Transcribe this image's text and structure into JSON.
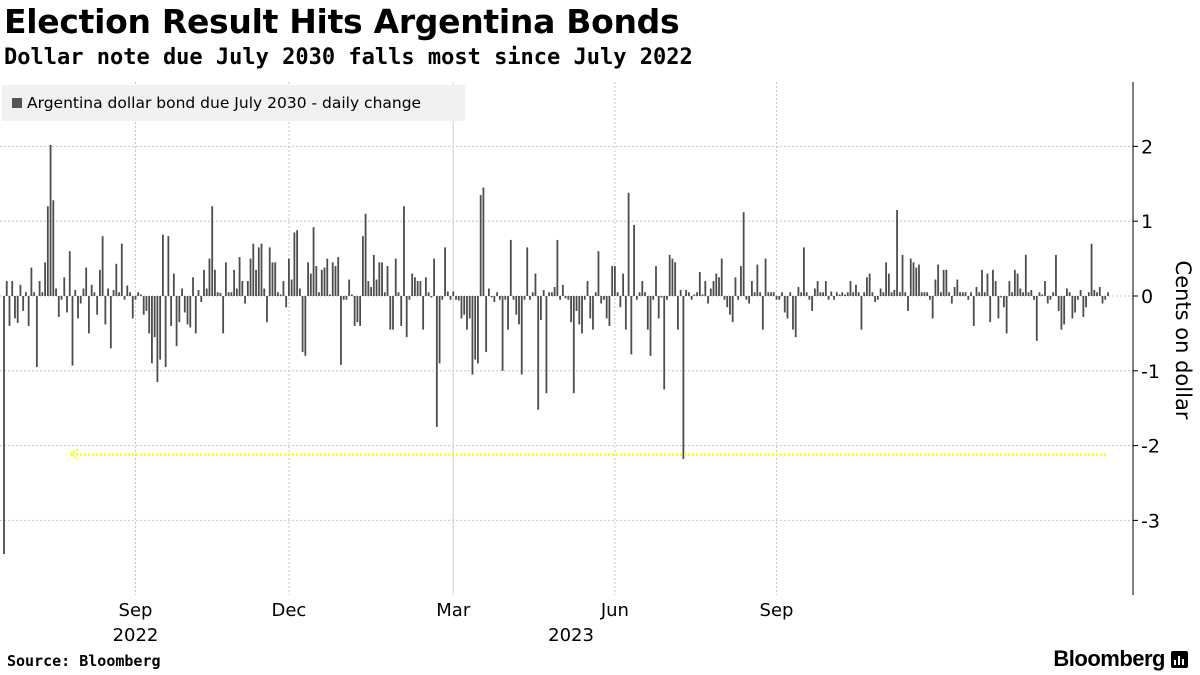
{
  "header": {
    "title": "Election Result Hits Argentina Bonds",
    "subtitle": "Dollar note due July 2030 falls most since July 2022"
  },
  "legend": {
    "label": "Argentina dollar bond due July 2030 - daily change"
  },
  "footer": {
    "source": "Source: Bloomberg",
    "brand": "Bloomberg"
  },
  "colors": {
    "bar": "#4d4d4d",
    "highlight": "#ffff00",
    "grid": "#c8c8c8",
    "legend_bg": "#f1f1f1"
  },
  "chart_data": {
    "type": "bar",
    "title": "Election Result Hits Argentina Bonds",
    "subtitle": "Dollar note due July 2030 falls most since July 2022",
    "ylabel": "Cents on dollar",
    "xlabel": "",
    "ylim": [
      -4,
      2.8
    ],
    "yticks": [
      2,
      1,
      0,
      -1,
      -2,
      -3
    ],
    "xticks": [
      {
        "label": "Sep",
        "index": 48
      },
      {
        "label": "Dec",
        "index": 104
      },
      {
        "label": "Mar",
        "index": 164
      },
      {
        "label": "Jun",
        "index": 223
      },
      {
        "label": "Sep",
        "index": 282
      }
    ],
    "year_labels": [
      {
        "label": "2022",
        "index": 48
      },
      {
        "label": "2023",
        "index": 207
      }
    ],
    "annotation": {
      "type": "reference-line",
      "style": "dotted-arrow",
      "value": -2.12
    },
    "series": [
      {
        "name": "Argentina dollar bond due July 2030 - daily change",
        "values": [
          -3.45,
          0.2,
          -0.4,
          0.2,
          -0.3,
          -0.36,
          0.15,
          -0.2,
          0.05,
          -0.4,
          0.38,
          0.05,
          -0.95,
          0.2,
          0.05,
          0.45,
          1.2,
          2.02,
          1.28,
          0.1,
          -0.28,
          -0.05,
          0.25,
          -0.22,
          0.6,
          -0.93,
          0.08,
          -0.3,
          -0.1,
          0.1,
          0.38,
          -0.5,
          0.15,
          0.05,
          -0.25,
          0.35,
          0.8,
          -0.38,
          0.1,
          -0.7,
          0.08,
          0.43,
          0.05,
          0.7,
          -0.05,
          0.14,
          0.05,
          -0.3,
          -0.05,
          0.05,
          0.02,
          -0.25,
          -0.2,
          -0.5,
          -0.9,
          -0.55,
          -1.15,
          -0.85,
          0.82,
          -0.95,
          0.8,
          -0.4,
          0.3,
          -0.67,
          -0.35,
          0.1,
          -0.22,
          -0.38,
          -0.42,
          0.25,
          -0.5,
          0.08,
          -0.08,
          0.35,
          0.1,
          0.5,
          1.2,
          0.35,
          0.05,
          0.04,
          -0.5,
          0.45,
          0.05,
          0.05,
          0.35,
          0.1,
          0.52,
          0.2,
          -0.1,
          0.2,
          0.5,
          0.7,
          0.35,
          0.65,
          0.7,
          0.1,
          -0.35,
          0.65,
          0.45,
          0.45,
          0.05,
          0.02,
          0.2,
          -0.15,
          0.5,
          0.22,
          0.85,
          0.88,
          0.1,
          -0.75,
          -0.8,
          0.45,
          0.3,
          0.92,
          0.4,
          0.05,
          0.35,
          0.38,
          0.5,
          0.02,
          0.45,
          0.4,
          0.52,
          -0.92,
          -0.05,
          -0.05,
          0.22,
          0.02,
          -0.4,
          -0.35,
          -0.4,
          0.8,
          1.1,
          0.2,
          0.12,
          0.55,
          0.22,
          0.45,
          0.45,
          0.05,
          0.4,
          -0.45,
          -0.45,
          0.5,
          0.05,
          -0.4,
          1.2,
          -0.55,
          -0.05,
          0.3,
          0.25,
          0.2,
          0.2,
          -0.45,
          0.25,
          0.05,
          -0.02,
          0.5,
          -1.75,
          -0.9,
          -0.05,
          0.65,
          0.06,
          -0.05,
          0.06,
          -0.05,
          -0.06,
          -0.3,
          -0.25,
          -0.45,
          -0.3,
          -1.05,
          -0.85,
          -0.9,
          1.35,
          1.45,
          -0.75,
          0.1,
          -0.02,
          -0.08,
          0.05,
          -0.05,
          -1.0,
          -0.05,
          -0.45,
          0.75,
          -0.05,
          -0.25,
          -0.38,
          -1.05,
          -0.05,
          0.65,
          -0.05,
          0.05,
          0.3,
          -1.52,
          -0.32,
          0.08,
          -1.3,
          0.05,
          0.05,
          0.12,
          0.75,
          -0.05,
          0.15,
          -0.03,
          -0.05,
          -0.35,
          -1.3,
          -0.2,
          -0.38,
          -0.5,
          -0.05,
          0.2,
          -0.3,
          -0.45,
          0.05,
          0.6,
          -0.1,
          -0.05,
          -0.3,
          -0.4,
          0.4,
          0.4,
          0.05,
          -0.15,
          0.3,
          -0.45,
          1.38,
          -0.78,
          0.95,
          -0.05,
          0.05,
          0.2,
          0.05,
          -0.45,
          -0.8,
          -0.05,
          0.4,
          -0.3,
          -0.02,
          -1.25,
          -0.05,
          0.55,
          0.5,
          0.45,
          -0.45,
          0.08,
          -2.18,
          0.08,
          0.05,
          -0.05,
          0.02,
          0.05,
          0.32,
          0.02,
          0.2,
          -0.1,
          0.1,
          0.2,
          0.3,
          0.25,
          0.5,
          -0.05,
          -0.15,
          -0.25,
          -0.35,
          0.25,
          -0.05,
          0.4,
          1.12,
          -0.05,
          -0.1,
          0.2,
          0.05,
          0.42,
          0.05,
          -0.45,
          0.5,
          0.05,
          0.05,
          0.05,
          -0.05,
          -0.05,
          0.05,
          -0.22,
          -0.3,
          0.05,
          -0.45,
          -0.55,
          0.12,
          0.05,
          0.65,
          0.05,
          -0.05,
          -0.2,
          0.1,
          0.2,
          0.05,
          0.05,
          0.2,
          -0.05,
          0.06,
          -0.05,
          0.05,
          0.02,
          0.05,
          0.02,
          0.05,
          0.2,
          0.05,
          0.15,
          0.05,
          -0.45,
          0.05,
          0.25,
          0.3,
          0.05,
          -0.08,
          -0.05,
          0.1,
          0.05,
          0.45,
          0.3,
          0.05,
          0.08,
          1.15,
          0.05,
          0.55,
          0.05,
          -0.2,
          0.5,
          0.45,
          0.38,
          0.42,
          0.05,
          0.05,
          0.05,
          -0.05,
          -0.3,
          0.22,
          0.42,
          0.05,
          0.35,
          0.35,
          0.05,
          -0.1,
          0.12,
          0.22,
          0.05,
          0.05,
          0.05,
          -0.05,
          0.05,
          -0.4,
          0.12,
          0.05,
          0.35,
          0.05,
          0.3,
          -0.35,
          0.35,
          0.2,
          -0.3,
          -0.02,
          -0.15,
          -0.5,
          0.2,
          0.05,
          0.35,
          0.3,
          0.1,
          0.05,
          0.55,
          0.05,
          0.08,
          -0.05,
          -0.6,
          0.05,
          0.02,
          0.2,
          -0.1,
          -0.05,
          0.05,
          0.55,
          -0.2,
          -0.45,
          -0.38,
          0.1,
          0.05,
          -0.3,
          -0.22,
          -0.05,
          0.08,
          -0.28,
          -0.15,
          0.05,
          0.7,
          0.08,
          0.05,
          0.12,
          -0.1,
          -0.05,
          0.05
        ]
      }
    ]
  }
}
